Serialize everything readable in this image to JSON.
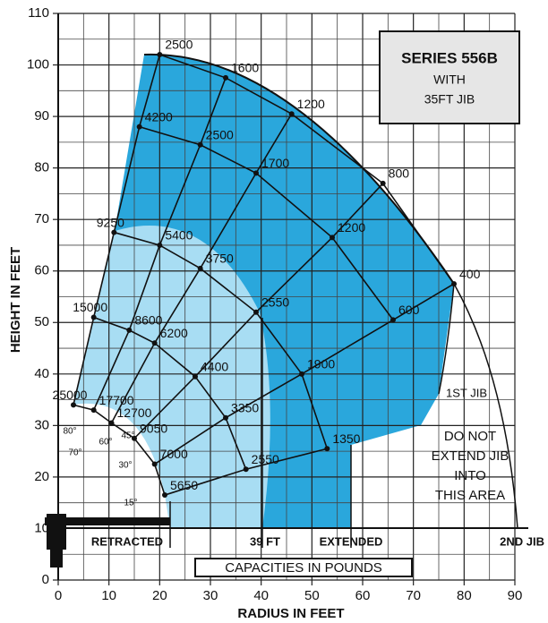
{
  "chart_data": {
    "type": "load-chart",
    "title": "SERIES 556B",
    "subtitle": [
      "WITH",
      "35FT JIB"
    ],
    "xlabel": "RADIUS IN FEET",
    "ylabel": "HEIGHT IN FEET",
    "note": "CAPACITIES IN POUNDS",
    "xlim": [
      0,
      90
    ],
    "ylim": [
      0,
      110
    ],
    "xticks": [
      0,
      10,
      20,
      30,
      40,
      50,
      60,
      70,
      80,
      90
    ],
    "yticks": [
      0,
      10,
      20,
      30,
      40,
      50,
      60,
      70,
      80,
      90,
      100,
      110
    ],
    "grid": true,
    "minor_grid": true,
    "boom_angles": [
      "80°",
      "70°",
      "60°",
      "45°",
      "30°",
      "15°"
    ],
    "regions": [
      "RETRACTED",
      "39 FT",
      "EXTENDED",
      "2ND JIB"
    ],
    "jib_label": "1ST JIB",
    "warning": [
      "DO NOT",
      "EXTEND JIB",
      "INTO",
      "THIS AREA"
    ],
    "arcs": [
      {
        "x": [
          20,
          33,
          46,
          64,
          78,
          null
        ],
        "y": [
          102,
          97.5,
          90.5,
          77,
          57.5,
          null
        ],
        "values": [
          2500,
          1600,
          1200,
          800,
          400,
          null
        ]
      },
      {
        "x": [
          16,
          28,
          39,
          54,
          66,
          null
        ],
        "y": [
          88,
          84.5,
          79,
          66.5,
          50.5,
          null
        ],
        "values": [
          4200,
          2500,
          1700,
          1200,
          600,
          null
        ]
      },
      {
        "x": [
          11,
          20,
          28,
          39,
          48,
          53
        ],
        "y": [
          67.5,
          65,
          60.5,
          52,
          40,
          25.5
        ],
        "values": [
          9250,
          5400,
          3750,
          2550,
          1900,
          1350
        ]
      },
      {
        "x": [
          7,
          14,
          19,
          27,
          33,
          37
        ],
        "y": [
          51,
          48.5,
          46,
          39.5,
          31.5,
          21.5
        ],
        "values": [
          15000,
          8600,
          6200,
          4400,
          3350,
          2550
        ]
      },
      {
        "x": [
          3,
          7,
          10.5,
          15,
          19,
          21
        ],
        "y": [
          34,
          33,
          30.5,
          27.5,
          22.5,
          16.5
        ],
        "values": [
          25000,
          17700,
          12700,
          9050,
          7000,
          5650
        ]
      }
    ]
  }
}
